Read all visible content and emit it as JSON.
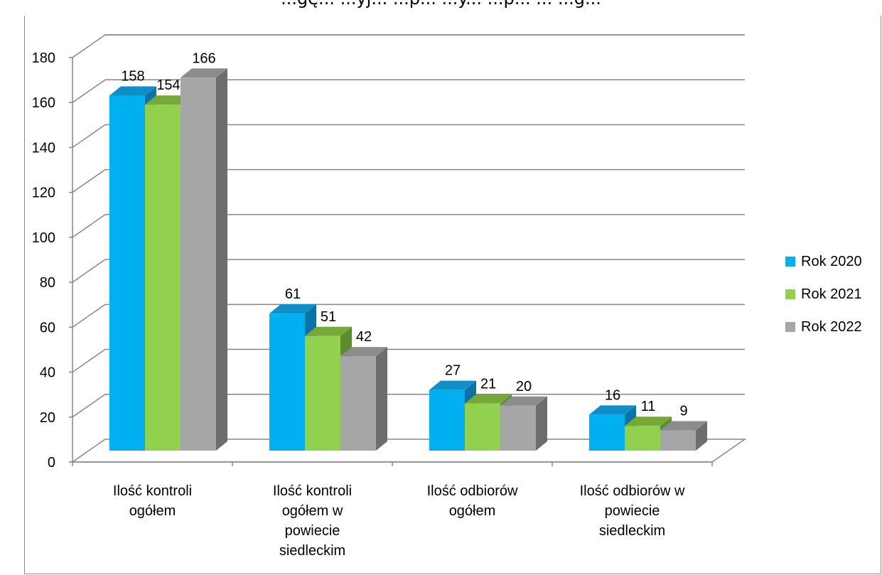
{
  "page": {
    "title": "...gę... ...yj... ...p... ...y... ...p... ... ...g..."
  },
  "colors": {
    "series": [
      "#00b0f0",
      "#92d050",
      "#a6a6a6"
    ],
    "side": [
      "#0a73a8",
      "#5d8c2e",
      "#6d6d6d"
    ],
    "top": [
      "#0f8fc7",
      "#76a83a",
      "#8c8c8c"
    ],
    "grid": "#868686",
    "text": "#000000"
  },
  "chart_data": {
    "type": "bar",
    "style": "3d-clustered-column",
    "categories": [
      "Ilość kontroli ogółem",
      "Ilość kontroli ogółem w powiecie siedleckim",
      "Ilość odbiorów ogółem",
      "Ilość odbiorów w powiecie siedleckim"
    ],
    "category_label_lines": [
      [
        "Ilość kontroli",
        "ogółem"
      ],
      [
        "Ilość kontroli",
        "ogółem w",
        "powiecie",
        "siedleckim"
      ],
      [
        "Ilość odbiorów",
        "ogółem"
      ],
      [
        "Ilość odbiorów w",
        "powiecie",
        "siedleckim"
      ]
    ],
    "series": [
      {
        "name": "Rok 2020",
        "values": [
          158,
          61,
          27,
          16
        ]
      },
      {
        "name": "Rok 2021",
        "values": [
          154,
          51,
          21,
          11
        ]
      },
      {
        "name": "Rok 2022",
        "values": [
          166,
          42,
          20,
          9
        ]
      }
    ],
    "ylim": [
      0,
      180
    ],
    "yticks": [
      0,
      20,
      40,
      60,
      80,
      100,
      120,
      140,
      160,
      180
    ],
    "grid": true,
    "legend_position": "right",
    "data_labels": true,
    "xlabel": "",
    "ylabel": ""
  }
}
